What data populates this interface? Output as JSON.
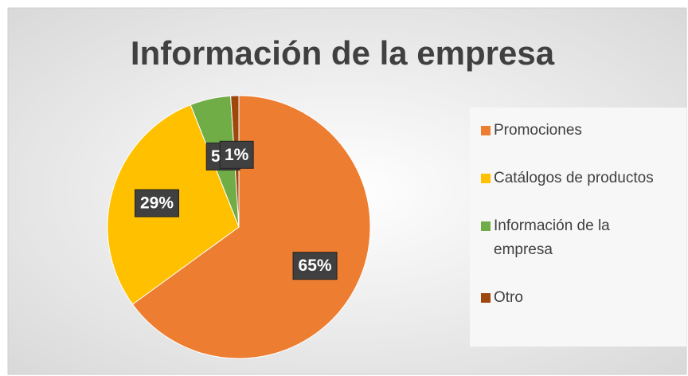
{
  "chart_data": {
    "type": "pie",
    "title": "Información de la empresa",
    "categories": [
      "Promociones",
      "Catálogos de productos",
      "Información de la empresa",
      "Otro"
    ],
    "values": [
      65,
      29,
      5,
      1
    ],
    "value_labels": [
      "65%",
      "29%",
      "5%",
      "1%"
    ],
    "colors": [
      "#ED7D31",
      "#FFC000",
      "#70AD47",
      "#9E480E"
    ],
    "legend": "right"
  }
}
